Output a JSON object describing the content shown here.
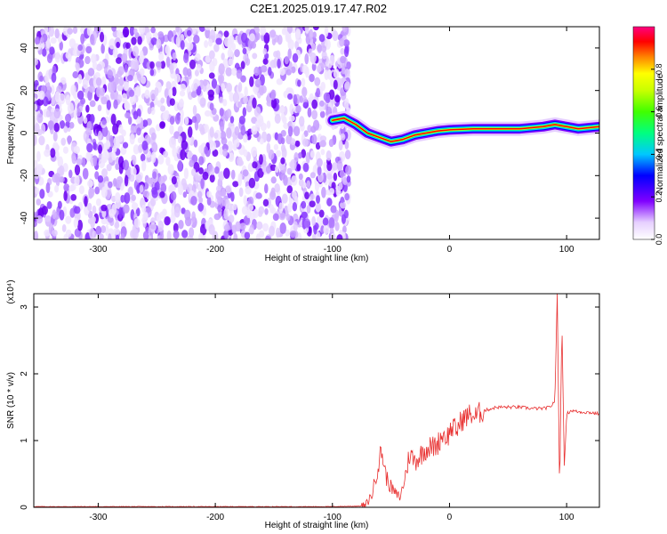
{
  "title": "C2E1.2025.019.17.47.R02",
  "chart_data": [
    {
      "type": "heatmap",
      "xlabel": "Height of straight line (km)",
      "ylabel": "Frequency (Hz)",
      "xlim": [
        -355,
        128
      ],
      "ylim": [
        -50,
        50
      ],
      "xticks": [
        -300,
        -200,
        -100,
        0,
        100
      ],
      "yticks": [
        -40,
        -20,
        0,
        20,
        40
      ],
      "colorbar": {
        "label": "Normalized spectral amplitude",
        "range": [
          0,
          1
        ],
        "ticks": [
          0.0,
          0.2,
          0.4,
          0.6,
          0.8
        ],
        "tick_labels": [
          "0.0",
          "0.2",
          "0.4",
          "0.6",
          "0.8"
        ]
      },
      "noise_region_x": [
        -355,
        -92
      ],
      "ridge": [
        {
          "x": -100,
          "y": 6
        },
        {
          "x": -90,
          "y": 7
        },
        {
          "x": -80,
          "y": 4
        },
        {
          "x": -70,
          "y": 0
        },
        {
          "x": -60,
          "y": -2
        },
        {
          "x": -50,
          "y": -4
        },
        {
          "x": -40,
          "y": -3
        },
        {
          "x": -30,
          "y": -1
        },
        {
          "x": -20,
          "y": 0
        },
        {
          "x": -10,
          "y": 1
        },
        {
          "x": 0,
          "y": 1.5
        },
        {
          "x": 20,
          "y": 2
        },
        {
          "x": 40,
          "y": 2
        },
        {
          "x": 60,
          "y": 2
        },
        {
          "x": 80,
          "y": 3
        },
        {
          "x": 90,
          "y": 4
        },
        {
          "x": 100,
          "y": 3
        },
        {
          "x": 110,
          "y": 2
        },
        {
          "x": 128,
          "y": 3
        }
      ]
    },
    {
      "type": "line",
      "xlabel": "Height of straight line (km)",
      "ylabel": "SNR (10 * v/v)",
      "scale_note": "(x10⁴)",
      "xlim": [
        -355,
        128
      ],
      "ylim": [
        0,
        3.2
      ],
      "xticks": [
        -300,
        -200,
        -100,
        0,
        100
      ],
      "yticks": [
        0,
        1,
        2,
        3
      ],
      "series": [
        {
          "color": "#e83030",
          "x": [
            -355,
            -200,
            -100,
            -72,
            -66,
            -62,
            -58,
            -54,
            -50,
            -46,
            -42,
            -38,
            -34,
            -30,
            -26,
            -22,
            -18,
            -14,
            -10,
            -6,
            -2,
            2,
            6,
            10,
            14,
            18,
            22,
            26,
            30,
            40,
            50,
            60,
            70,
            80,
            86,
            90,
            92,
            94,
            96,
            98,
            100,
            104,
            110,
            120,
            128
          ],
          "y": [
            0.01,
            0.01,
            0.01,
            0.02,
            0.2,
            0.55,
            0.85,
            0.45,
            0.3,
            0.2,
            0.15,
            0.45,
            0.8,
            0.7,
            0.75,
            0.85,
            0.9,
            0.9,
            0.95,
            1.1,
            1.05,
            1.2,
            1.15,
            1.3,
            1.35,
            1.4,
            1.35,
            1.42,
            1.45,
            1.5,
            1.5,
            1.5,
            1.48,
            1.48,
            1.5,
            1.6,
            3.2,
            0.2,
            2.8,
            0.6,
            1.4,
            1.45,
            1.43,
            1.42,
            1.4
          ]
        }
      ]
    }
  ]
}
